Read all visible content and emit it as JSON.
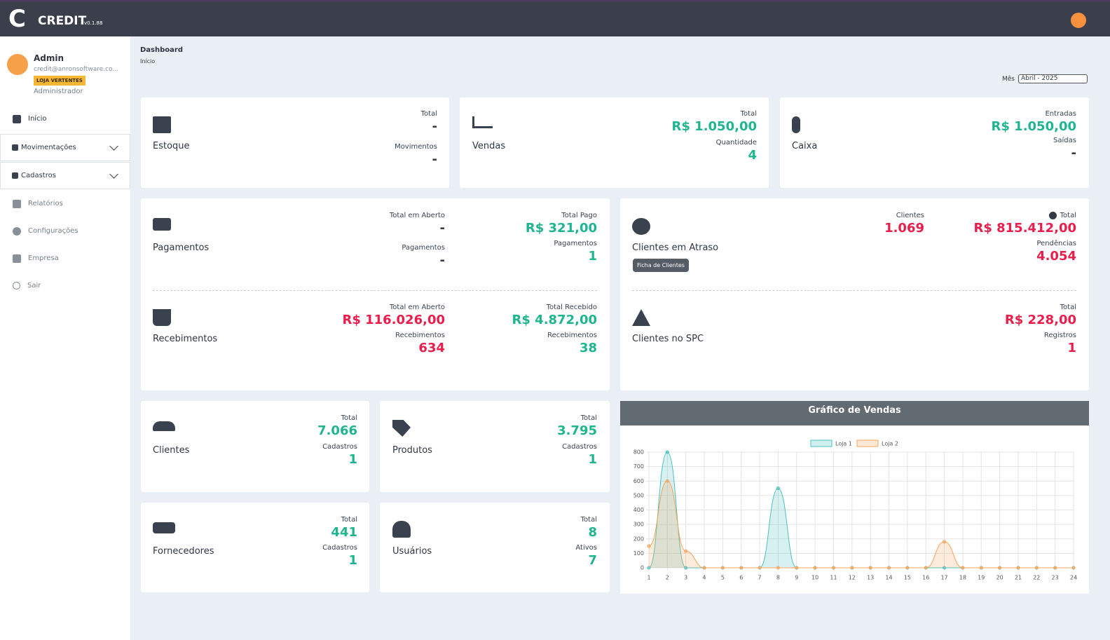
{
  "header": {
    "logo": "C",
    "app": "CREDIT",
    "version": "v0.1.88"
  },
  "user": {
    "name": "Admin",
    "email": "credit@anronsoftware.co...",
    "store": "LOJA VERTENTES",
    "role": "Administrador"
  },
  "menu": [
    "Início",
    "Movimentações",
    "Cadastros",
    "Relatórios",
    "Configurações",
    "Empresa",
    "Sair"
  ],
  "breadcrumb": {
    "title": "Dashboard",
    "page": "Início"
  },
  "month": {
    "label": "Mês",
    "selected": "Abril - 2025"
  },
  "cards": [
    {
      "title": "Estoque",
      "stats": [
        {
          "label": "Total",
          "value": "-"
        },
        {
          "label": "Movimentos",
          "value": "-"
        }
      ]
    },
    {
      "title": "Vendas",
      "stats": [
        {
          "label": "Total",
          "value": "R$ 1.050,00"
        },
        {
          "label": "Quantidade",
          "value": "4"
        }
      ]
    },
    {
      "title": "Caixa",
      "stats": [
        {
          "label": "Entradas",
          "value": "R$ 1.050,00"
        },
        {
          "label": "Saídas",
          "value": "-"
        }
      ]
    },
    {
      "title": "Pagamentos",
      "stats": [
        {
          "label": "Total em Aberto",
          "value": "-"
        },
        {
          "label": "Pagamentos",
          "value": "-"
        },
        {
          "label": "Total Pago",
          "value": "R$ 321,00"
        },
        {
          "label": "Pagamentos",
          "value": "1"
        }
      ]
    },
    {
      "title": "Recebimentos",
      "stats": [
        {
          "label": "Total em Aberto",
          "value": "R$ 116.026,00"
        },
        {
          "label": "Recebimentos",
          "value": "634"
        },
        {
          "label": "Total Recebido",
          "value": "R$ 4.872,00"
        },
        {
          "label": "Recebimentos",
          "value": "38"
        }
      ]
    },
    {
      "title": "Clientes em Atraso",
      "button": "Ficha de Clientes",
      "stats": [
        {
          "label": "Clientes",
          "value": "1.069"
        },
        {
          "label": "Total",
          "value": "R$ 815.412,00"
        },
        {
          "label": "Pendências",
          "value": "4.054"
        }
      ]
    },
    {
      "title": "Clientes no SPC",
      "stats": [
        {
          "label": "Total",
          "value": "R$ 228,00"
        },
        {
          "label": "Registros",
          "value": "1"
        }
      ]
    },
    {
      "title": "Clientes",
      "stats": [
        {
          "label": "Total",
          "value": "7.066"
        },
        {
          "label": "Cadastros",
          "value": "1"
        }
      ]
    },
    {
      "title": "Produtos",
      "stats": [
        {
          "label": "Total",
          "value": "3.795"
        },
        {
          "label": "Cadastros",
          "value": "1"
        }
      ]
    },
    {
      "title": "Fornecedores",
      "stats": [
        {
          "label": "Total",
          "value": "441"
        },
        {
          "label": "Cadastros",
          "value": "1"
        }
      ]
    },
    {
      "title": "Usuários",
      "stats": [
        {
          "label": "Total",
          "value": "8"
        },
        {
          "label": "Ativos",
          "value": "7"
        }
      ]
    }
  ],
  "chart_data": {
    "type": "line",
    "title": "Gráfico de Vendas",
    "x": [
      1,
      2,
      3,
      4,
      5,
      6,
      7,
      8,
      9,
      10,
      11,
      12,
      13,
      14,
      15,
      16,
      17,
      18,
      19,
      20,
      21,
      22,
      23,
      24
    ],
    "xlim": [
      1,
      24
    ],
    "xticks": [
      1,
      2,
      3,
      4,
      5,
      6,
      7,
      8,
      9,
      10,
      11,
      12,
      13,
      14,
      15,
      16,
      17,
      18,
      19,
      20,
      21,
      22,
      23,
      24
    ],
    "ylim": [
      0,
      800
    ],
    "yticks": [
      0,
      100,
      200,
      300,
      400,
      500,
      600,
      700,
      800
    ],
    "grid": true,
    "series": [
      {
        "name": "Loja 1",
        "color": "#4bc0c0",
        "values": [
          0,
          800,
          0,
          0,
          0,
          0,
          0,
          550,
          0,
          0,
          0,
          0,
          0,
          0,
          0,
          0,
          0,
          0,
          0,
          0,
          0,
          0,
          0,
          0
        ]
      },
      {
        "name": "Loja 2",
        "color": "#f5a55a",
        "values": [
          150,
          600,
          115,
          0,
          0,
          0,
          0,
          0,
          0,
          0,
          0,
          0,
          0,
          0,
          0,
          0,
          180,
          0,
          0,
          0,
          0,
          0,
          0,
          0
        ]
      }
    ]
  }
}
